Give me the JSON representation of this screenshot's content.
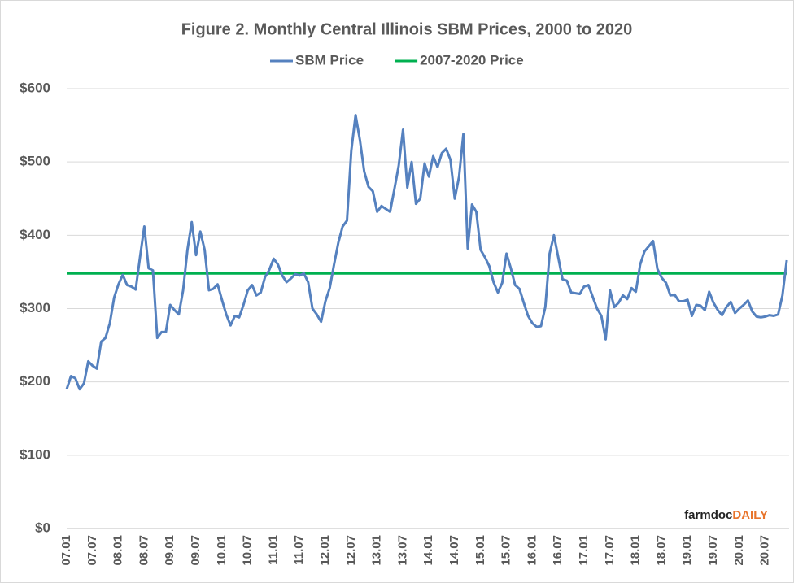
{
  "chart_data": {
    "type": "line",
    "title": "Figure 2.  Monthly Central Illinois SBM Prices, 2000 to 2020",
    "logo_text": "farmdoc",
    "logo_accent": "DAILY",
    "categories": [
      "07.01",
      null,
      null,
      null,
      null,
      null,
      "07.07",
      null,
      null,
      null,
      null,
      null,
      "08.01",
      null,
      null,
      null,
      null,
      null,
      "08.07",
      null,
      null,
      null,
      null,
      null,
      "09.01",
      null,
      null,
      null,
      null,
      null,
      "09.07",
      null,
      null,
      null,
      null,
      null,
      "10.01",
      null,
      null,
      null,
      null,
      null,
      "10.07",
      null,
      null,
      null,
      null,
      null,
      "11.01",
      null,
      null,
      null,
      null,
      null,
      "11.07",
      null,
      null,
      null,
      null,
      null,
      "12.01",
      null,
      null,
      null,
      null,
      null,
      "12.07",
      null,
      null,
      null,
      null,
      null,
      "13.01",
      null,
      null,
      null,
      null,
      null,
      "13.07",
      null,
      null,
      null,
      null,
      null,
      "14.01",
      null,
      null,
      null,
      null,
      null,
      "14.07",
      null,
      null,
      null,
      null,
      null,
      "15.01",
      null,
      null,
      null,
      null,
      null,
      "15.07",
      null,
      null,
      null,
      null,
      null,
      "16.01",
      null,
      null,
      null,
      null,
      null,
      "16.07",
      null,
      null,
      null,
      null,
      null,
      "17.01",
      null,
      null,
      null,
      null,
      null,
      "17.07",
      null,
      null,
      null,
      null,
      null,
      "18.01",
      null,
      null,
      null,
      null,
      null,
      "18.07",
      null,
      null,
      null,
      null,
      null,
      "19.01",
      null,
      null,
      null,
      null,
      null,
      "19.07",
      null,
      null,
      null,
      null,
      null,
      "20.01",
      null,
      null,
      null,
      null,
      null,
      "20.07",
      null,
      null,
      null,
      null,
      null
    ],
    "series": [
      {
        "name": "SBM Price",
        "color": "#5581bf",
        "values": [
          190,
          208,
          205,
          190,
          198,
          228,
          222,
          218,
          255,
          260,
          280,
          315,
          333,
          346,
          332,
          330,
          326,
          370,
          412,
          355,
          352,
          260,
          268,
          268,
          305,
          298,
          292,
          325,
          380,
          418,
          373,
          405,
          380,
          325,
          327,
          333,
          312,
          292,
          277,
          290,
          288,
          305,
          325,
          332,
          318,
          322,
          343,
          353,
          368,
          360,
          345,
          336,
          341,
          347,
          345,
          348,
          336,
          300,
          292,
          282,
          310,
          328,
          360,
          390,
          412,
          420,
          515,
          564,
          530,
          487,
          466,
          460,
          432,
          440,
          436,
          432,
          463,
          495,
          544,
          465,
          500,
          443,
          450,
          498,
          480,
          508,
          493,
          512,
          518,
          503,
          450,
          480,
          538,
          382,
          442,
          432,
          380,
          370,
          358,
          336,
          322,
          335,
          375,
          355,
          332,
          327,
          308,
          290,
          280,
          275,
          276,
          302,
          375,
          400,
          370,
          340,
          338,
          322,
          321,
          320,
          330,
          332,
          316,
          300,
          290,
          258,
          325,
          302,
          308,
          318,
          313,
          328,
          323,
          360,
          378,
          385,
          392,
          354,
          342,
          335,
          318,
          319,
          310,
          310,
          312,
          290,
          305,
          304,
          298,
          323,
          308,
          298,
          291,
          302,
          309,
          294,
          300,
          305,
          311,
          296,
          289,
          288,
          289,
          291,
          290,
          292,
          318,
          366
        ]
      },
      {
        "name": "2007-2020 Price",
        "color": "#00b050",
        "values": [
          348,
          348,
          348,
          348,
          348,
          348,
          348,
          348,
          348,
          348,
          348,
          348,
          348,
          348,
          348,
          348,
          348,
          348,
          348,
          348,
          348,
          348,
          348,
          348,
          348,
          348,
          348,
          348,
          348,
          348,
          348,
          348,
          348,
          348,
          348,
          348,
          348,
          348,
          348,
          348,
          348,
          348,
          348,
          348,
          348,
          348,
          348,
          348,
          348,
          348,
          348,
          348,
          348,
          348,
          348,
          348,
          348,
          348,
          348,
          348,
          348,
          348,
          348,
          348,
          348,
          348,
          348,
          348,
          348,
          348,
          348,
          348,
          348,
          348,
          348,
          348,
          348,
          348,
          348,
          348,
          348,
          348,
          348,
          348,
          348,
          348,
          348,
          348,
          348,
          348,
          348,
          348,
          348,
          348,
          348,
          348,
          348,
          348,
          348,
          348,
          348,
          348,
          348,
          348,
          348,
          348,
          348,
          348,
          348,
          348,
          348,
          348,
          348,
          348,
          348,
          348,
          348,
          348,
          348,
          348,
          348,
          348,
          348,
          348,
          348,
          348,
          348,
          348,
          348,
          348,
          348,
          348,
          348,
          348,
          348,
          348,
          348,
          348,
          348,
          348,
          348,
          348,
          348,
          348,
          348,
          348,
          348,
          348,
          348,
          348,
          348,
          348,
          348,
          348,
          348,
          348,
          348,
          348,
          348,
          348,
          348,
          348,
          348,
          348,
          348,
          348,
          348,
          348
        ]
      }
    ],
    "ylim": [
      0,
      600
    ],
    "yticks": [
      {
        "value": 0,
        "label": "$0"
      },
      {
        "value": 100,
        "label": "$100"
      },
      {
        "value": 200,
        "label": "$200"
      },
      {
        "value": 300,
        "label": "$300"
      },
      {
        "value": 400,
        "label": "$400"
      },
      {
        "value": 500,
        "label": "$500"
      },
      {
        "value": 600,
        "label": "$600"
      }
    ],
    "grid": true,
    "legend": "top"
  }
}
